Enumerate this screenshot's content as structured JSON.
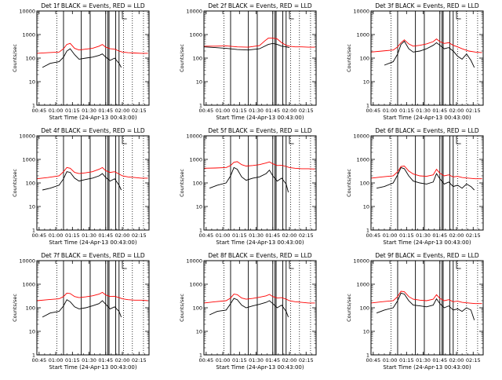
{
  "common": {
    "title_suffix": "BLACK = Events, RED = LLD",
    "xlabel": "Start Time (24-Apr-13 00:43:00)",
    "ylabel": "Counts/sec",
    "x_tick_labels": [
      "00:45",
      "01:00",
      "01:15",
      "01:30",
      "01:45",
      "02:00",
      "02:15"
    ],
    "y_tick_labels": [
      "1",
      "10",
      "100",
      "1000",
      "10000"
    ],
    "colors": {
      "events": "#000000",
      "lld": "#ff0000"
    }
  },
  "chart_data": [
    {
      "type": "line",
      "title": "Det 1f BLACK = Events, RED = LLD",
      "xlabel": "Start Time (24-Apr-13 00:43:00)",
      "ylabel": "Counts/sec",
      "x_range_minutes": [
        0,
        101
      ],
      "y_log": true,
      "ylim": [
        1,
        10000
      ],
      "solid_vlines_min": [
        24,
        40,
        48,
        62,
        64,
        65,
        71,
        74
      ],
      "dotted_vlines_min": [
        18,
        78,
        86,
        96
      ],
      "gap_min": [
        77,
        81
      ],
      "series": [
        {
          "name": "BLACK = Events",
          "color": "#000000",
          "x": [
            5,
            12,
            20,
            24,
            27,
            30,
            34,
            38,
            44,
            50,
            56,
            59,
            62,
            66,
            70,
            74,
            76
          ],
          "y": [
            40,
            60,
            70,
            110,
            200,
            250,
            140,
            90,
            100,
            110,
            130,
            150,
            110,
            80,
            100,
            60,
            40
          ]
        },
        {
          "name": "RED = LLD",
          "color": "#ff0000",
          "x": [
            0,
            10,
            20,
            24,
            27,
            30,
            34,
            38,
            44,
            50,
            56,
            59,
            62,
            66,
            70,
            74,
            77,
            82,
            88,
            94,
            100
          ],
          "y": [
            160,
            170,
            180,
            250,
            380,
            420,
            260,
            220,
            240,
            260,
            320,
            380,
            290,
            250,
            240,
            200,
            180,
            170,
            165,
            160,
            160
          ]
        }
      ]
    },
    {
      "type": "line",
      "title": "Det 2f BLACK = Events, RED = LLD",
      "xlabel": "Start Time (24-Apr-13 00:43:00)",
      "ylabel": "Counts/sec",
      "x_range_minutes": [
        0,
        101
      ],
      "y_log": true,
      "ylim": [
        1,
        10000
      ],
      "solid_vlines_min": [
        24,
        40,
        48,
        62,
        64,
        65,
        71,
        74
      ],
      "dotted_vlines_min": [
        18,
        78,
        86,
        96
      ],
      "gap_min": [
        77,
        81
      ],
      "series": [
        {
          "name": "BLACK = Events",
          "color": "#000000",
          "x": [
            0,
            10,
            20,
            30,
            40,
            50,
            58,
            62,
            66,
            70,
            74,
            77
          ],
          "y": [
            300,
            280,
            260,
            230,
            220,
            250,
            380,
            420,
            380,
            320,
            300,
            280
          ]
        },
        {
          "name": "RED = LLD",
          "color": "#ff0000",
          "x": [
            0,
            10,
            20,
            30,
            40,
            50,
            55,
            58,
            62,
            66,
            70,
            74,
            77,
            82,
            88,
            94,
            100
          ],
          "y": [
            320,
            320,
            330,
            300,
            290,
            340,
            550,
            700,
            700,
            650,
            450,
            350,
            320,
            300,
            300,
            290,
            290
          ]
        }
      ]
    },
    {
      "type": "line",
      "title": "Det 3f BLACK = Events, RED = LLD",
      "xlabel": "Start Time (24-Apr-13 00:43:00)",
      "ylabel": "Counts/sec",
      "x_range_minutes": [
        0,
        101
      ],
      "y_log": true,
      "ylim": [
        1,
        10000
      ],
      "solid_vlines_min": [
        24,
        40,
        48,
        62,
        64,
        65,
        71,
        74
      ],
      "dotted_vlines_min": [
        18,
        78,
        86,
        96
      ],
      "gap_min": [
        77,
        81
      ],
      "series": [
        {
          "name": "BLACK = Events",
          "color": "#000000",
          "x": [
            12,
            20,
            24,
            27,
            30,
            34,
            38,
            44,
            50,
            56,
            59,
            62,
            66,
            70,
            74,
            78,
            82,
            86,
            90,
            93
          ],
          "y": [
            50,
            70,
            150,
            380,
            520,
            250,
            180,
            200,
            250,
            350,
            450,
            350,
            250,
            280,
            200,
            120,
            90,
            150,
            80,
            40
          ]
        },
        {
          "name": "RED = LLD",
          "color": "#ff0000",
          "x": [
            0,
            10,
            20,
            24,
            27,
            30,
            34,
            38,
            44,
            50,
            56,
            59,
            62,
            66,
            70,
            74,
            78,
            82,
            88,
            94,
            100
          ],
          "y": [
            180,
            200,
            220,
            300,
            450,
            600,
            400,
            320,
            350,
            400,
            500,
            650,
            500,
            420,
            450,
            350,
            300,
            250,
            200,
            180,
            170
          ]
        }
      ]
    },
    {
      "type": "line",
      "title": "Det 4f BLACK = Events, RED = LLD",
      "xlabel": "Start Time (24-Apr-13 00:43:00)",
      "ylabel": "Counts/sec",
      "x_range_minutes": [
        0,
        101
      ],
      "y_log": true,
      "ylim": [
        1,
        10000
      ],
      "solid_vlines_min": [
        24,
        40,
        48,
        62,
        64,
        65,
        71,
        74
      ],
      "dotted_vlines_min": [
        18,
        78,
        86,
        96
      ],
      "gap_min": [
        77,
        81
      ],
      "series": [
        {
          "name": "BLACK = Events",
          "color": "#000000",
          "x": [
            5,
            12,
            20,
            24,
            27,
            30,
            34,
            38,
            44,
            50,
            56,
            59,
            62,
            66,
            70,
            74,
            76
          ],
          "y": [
            50,
            60,
            80,
            150,
            300,
            280,
            160,
            120,
            140,
            160,
            200,
            250,
            170,
            120,
            150,
            80,
            50
          ]
        },
        {
          "name": "RED = LLD",
          "color": "#ff0000",
          "x": [
            0,
            10,
            20,
            24,
            27,
            30,
            34,
            38,
            44,
            50,
            56,
            59,
            62,
            66,
            70,
            74,
            77,
            82,
            88,
            94,
            100
          ],
          "y": [
            150,
            170,
            200,
            300,
            450,
            420,
            280,
            250,
            270,
            300,
            380,
            450,
            330,
            280,
            300,
            240,
            200,
            180,
            170,
            160,
            160
          ]
        }
      ]
    },
    {
      "type": "line",
      "title": "Det 5f BLACK = Events, RED = LLD",
      "xlabel": "Start Time (24-Apr-13 00:43:00)",
      "ylabel": "Counts/sec",
      "x_range_minutes": [
        0,
        101
      ],
      "y_log": true,
      "ylim": [
        1,
        10000
      ],
      "solid_vlines_min": [
        24,
        40,
        48,
        62,
        64,
        65,
        71,
        74
      ],
      "dotted_vlines_min": [
        18,
        78,
        86,
        96
      ],
      "gap_min": [
        77,
        81
      ],
      "series": [
        {
          "name": "BLACK = Events",
          "color": "#000000",
          "x": [
            5,
            12,
            20,
            24,
            27,
            30,
            34,
            38,
            44,
            50,
            56,
            59,
            62,
            66,
            70,
            74,
            76
          ],
          "y": [
            60,
            80,
            100,
            200,
            450,
            380,
            180,
            130,
            160,
            180,
            250,
            350,
            200,
            120,
            160,
            90,
            40
          ]
        },
        {
          "name": "RED = LLD",
          "color": "#ff0000",
          "x": [
            0,
            10,
            20,
            24,
            27,
            30,
            34,
            38,
            44,
            50,
            56,
            59,
            62,
            66,
            70,
            74,
            77,
            82,
            88,
            94,
            100
          ],
          "y": [
            420,
            430,
            450,
            550,
            750,
            800,
            600,
            520,
            550,
            600,
            700,
            780,
            650,
            550,
            560,
            500,
            450,
            420,
            400,
            400,
            390
          ]
        }
      ]
    },
    {
      "type": "line",
      "title": "Det 6f BLACK = Events, RED = LLD",
      "xlabel": "Start Time (24-Apr-13 00:43:00)",
      "ylabel": "Counts/sec",
      "x_range_minutes": [
        0,
        101
      ],
      "y_log": true,
      "ylim": [
        1,
        10000
      ],
      "solid_vlines_min": [
        24,
        40,
        48,
        62,
        64,
        65,
        71,
        74
      ],
      "dotted_vlines_min": [
        18,
        78,
        86,
        96
      ],
      "gap_min": [
        77,
        81
      ],
      "series": [
        {
          "name": "BLACK = Events",
          "color": "#000000",
          "x": [
            5,
            12,
            20,
            24,
            27,
            30,
            34,
            38,
            44,
            50,
            56,
            59,
            62,
            66,
            70,
            74,
            78,
            82,
            86,
            90,
            93
          ],
          "y": [
            60,
            70,
            100,
            220,
            450,
            400,
            200,
            120,
            100,
            90,
            110,
            250,
            150,
            90,
            110,
            70,
            80,
            60,
            90,
            70,
            50
          ]
        },
        {
          "name": "RED = LLD",
          "color": "#ff0000",
          "x": [
            0,
            10,
            20,
            24,
            27,
            30,
            34,
            38,
            44,
            50,
            56,
            59,
            62,
            66,
            70,
            74,
            78,
            82,
            88,
            94,
            100
          ],
          "y": [
            160,
            180,
            200,
            300,
            500,
            520,
            320,
            240,
            200,
            190,
            220,
            380,
            260,
            200,
            220,
            180,
            190,
            170,
            160,
            150,
            150
          ]
        }
      ]
    },
    {
      "type": "line",
      "title": "Det 7f BLACK = Events, RED = LLD",
      "xlabel": "Start Time (24-Apr-13 00:43:00)",
      "ylabel": "Counts/sec",
      "x_range_minutes": [
        0,
        101
      ],
      "y_log": true,
      "ylim": [
        1,
        10000
      ],
      "solid_vlines_min": [
        24,
        40,
        48,
        62,
        64,
        65,
        71,
        74
      ],
      "dotted_vlines_min": [
        18,
        78,
        86,
        96
      ],
      "gap_min": [
        77,
        81
      ],
      "series": [
        {
          "name": "BLACK = Events",
          "color": "#000000",
          "x": [
            5,
            12,
            20,
            24,
            27,
            30,
            34,
            38,
            44,
            50,
            56,
            59,
            62,
            66,
            70,
            74,
            76
          ],
          "y": [
            40,
            60,
            70,
            120,
            220,
            180,
            110,
            90,
            100,
            120,
            150,
            200,
            140,
            90,
            110,
            70,
            40
          ]
        },
        {
          "name": "RED = LLD",
          "color": "#ff0000",
          "x": [
            0,
            10,
            20,
            24,
            27,
            30,
            34,
            38,
            44,
            50,
            56,
            59,
            62,
            66,
            70,
            74,
            77,
            82,
            88,
            94,
            100
          ],
          "y": [
            200,
            220,
            240,
            300,
            420,
            400,
            300,
            270,
            290,
            320,
            380,
            450,
            350,
            300,
            310,
            270,
            240,
            220,
            210,
            210,
            200
          ]
        }
      ]
    },
    {
      "type": "line",
      "title": "Det 8f BLACK = Events, RED = LLD",
      "xlabel": "Start Time (24-Apr-13 00:43:00)",
      "ylabel": "Counts/sec",
      "x_range_minutes": [
        0,
        101
      ],
      "y_log": true,
      "ylim": [
        1,
        10000
      ],
      "solid_vlines_min": [
        24,
        40,
        48,
        62,
        64,
        65,
        71,
        74
      ],
      "dotted_vlines_min": [
        18,
        78,
        86,
        96
      ],
      "gap_min": [
        77,
        81
      ],
      "series": [
        {
          "name": "BLACK = Events",
          "color": "#000000",
          "x": [
            5,
            12,
            20,
            24,
            27,
            30,
            34,
            38,
            44,
            50,
            56,
            59,
            62,
            66,
            70,
            74,
            76
          ],
          "y": [
            50,
            70,
            80,
            150,
            250,
            220,
            130,
            100,
            120,
            140,
            170,
            200,
            150,
            100,
            130,
            70,
            40
          ]
        },
        {
          "name": "RED = LLD",
          "color": "#ff0000",
          "x": [
            0,
            10,
            20,
            24,
            27,
            30,
            34,
            38,
            44,
            50,
            56,
            59,
            62,
            66,
            70,
            74,
            77,
            82,
            88,
            94,
            100
          ],
          "y": [
            160,
            180,
            200,
            260,
            380,
            360,
            260,
            230,
            250,
            280,
            320,
            370,
            300,
            260,
            270,
            230,
            200,
            180,
            170,
            160,
            160
          ]
        }
      ]
    },
    {
      "type": "line",
      "title": "Det 9f BLACK = Events, RED = LLD",
      "xlabel": "Start Time (24-Apr-13 00:43:00)",
      "ylabel": "Counts/sec",
      "x_range_minutes": [
        0,
        101
      ],
      "y_log": true,
      "ylim": [
        1,
        10000
      ],
      "solid_vlines_min": [
        24,
        40,
        48,
        62,
        64,
        65,
        71,
        74
      ],
      "dotted_vlines_min": [
        18,
        78,
        86,
        96
      ],
      "gap_min": [
        77,
        81
      ],
      "series": [
        {
          "name": "BLACK = Events",
          "color": "#000000",
          "x": [
            5,
            12,
            20,
            24,
            27,
            30,
            34,
            38,
            44,
            50,
            56,
            59,
            62,
            66,
            70,
            74,
            78,
            82,
            86,
            90,
            93
          ],
          "y": [
            60,
            80,
            100,
            200,
            420,
            380,
            200,
            130,
            120,
            110,
            130,
            240,
            150,
            100,
            120,
            80,
            90,
            70,
            100,
            80,
            30
          ]
        },
        {
          "name": "RED = LLD",
          "color": "#ff0000",
          "x": [
            0,
            10,
            20,
            24,
            27,
            30,
            34,
            38,
            44,
            50,
            56,
            59,
            62,
            66,
            70,
            74,
            78,
            82,
            88,
            94,
            100
          ],
          "y": [
            160,
            180,
            200,
            300,
            500,
            480,
            300,
            230,
            210,
            200,
            230,
            360,
            250,
            200,
            220,
            180,
            190,
            170,
            160,
            150,
            150
          ]
        }
      ]
    }
  ]
}
